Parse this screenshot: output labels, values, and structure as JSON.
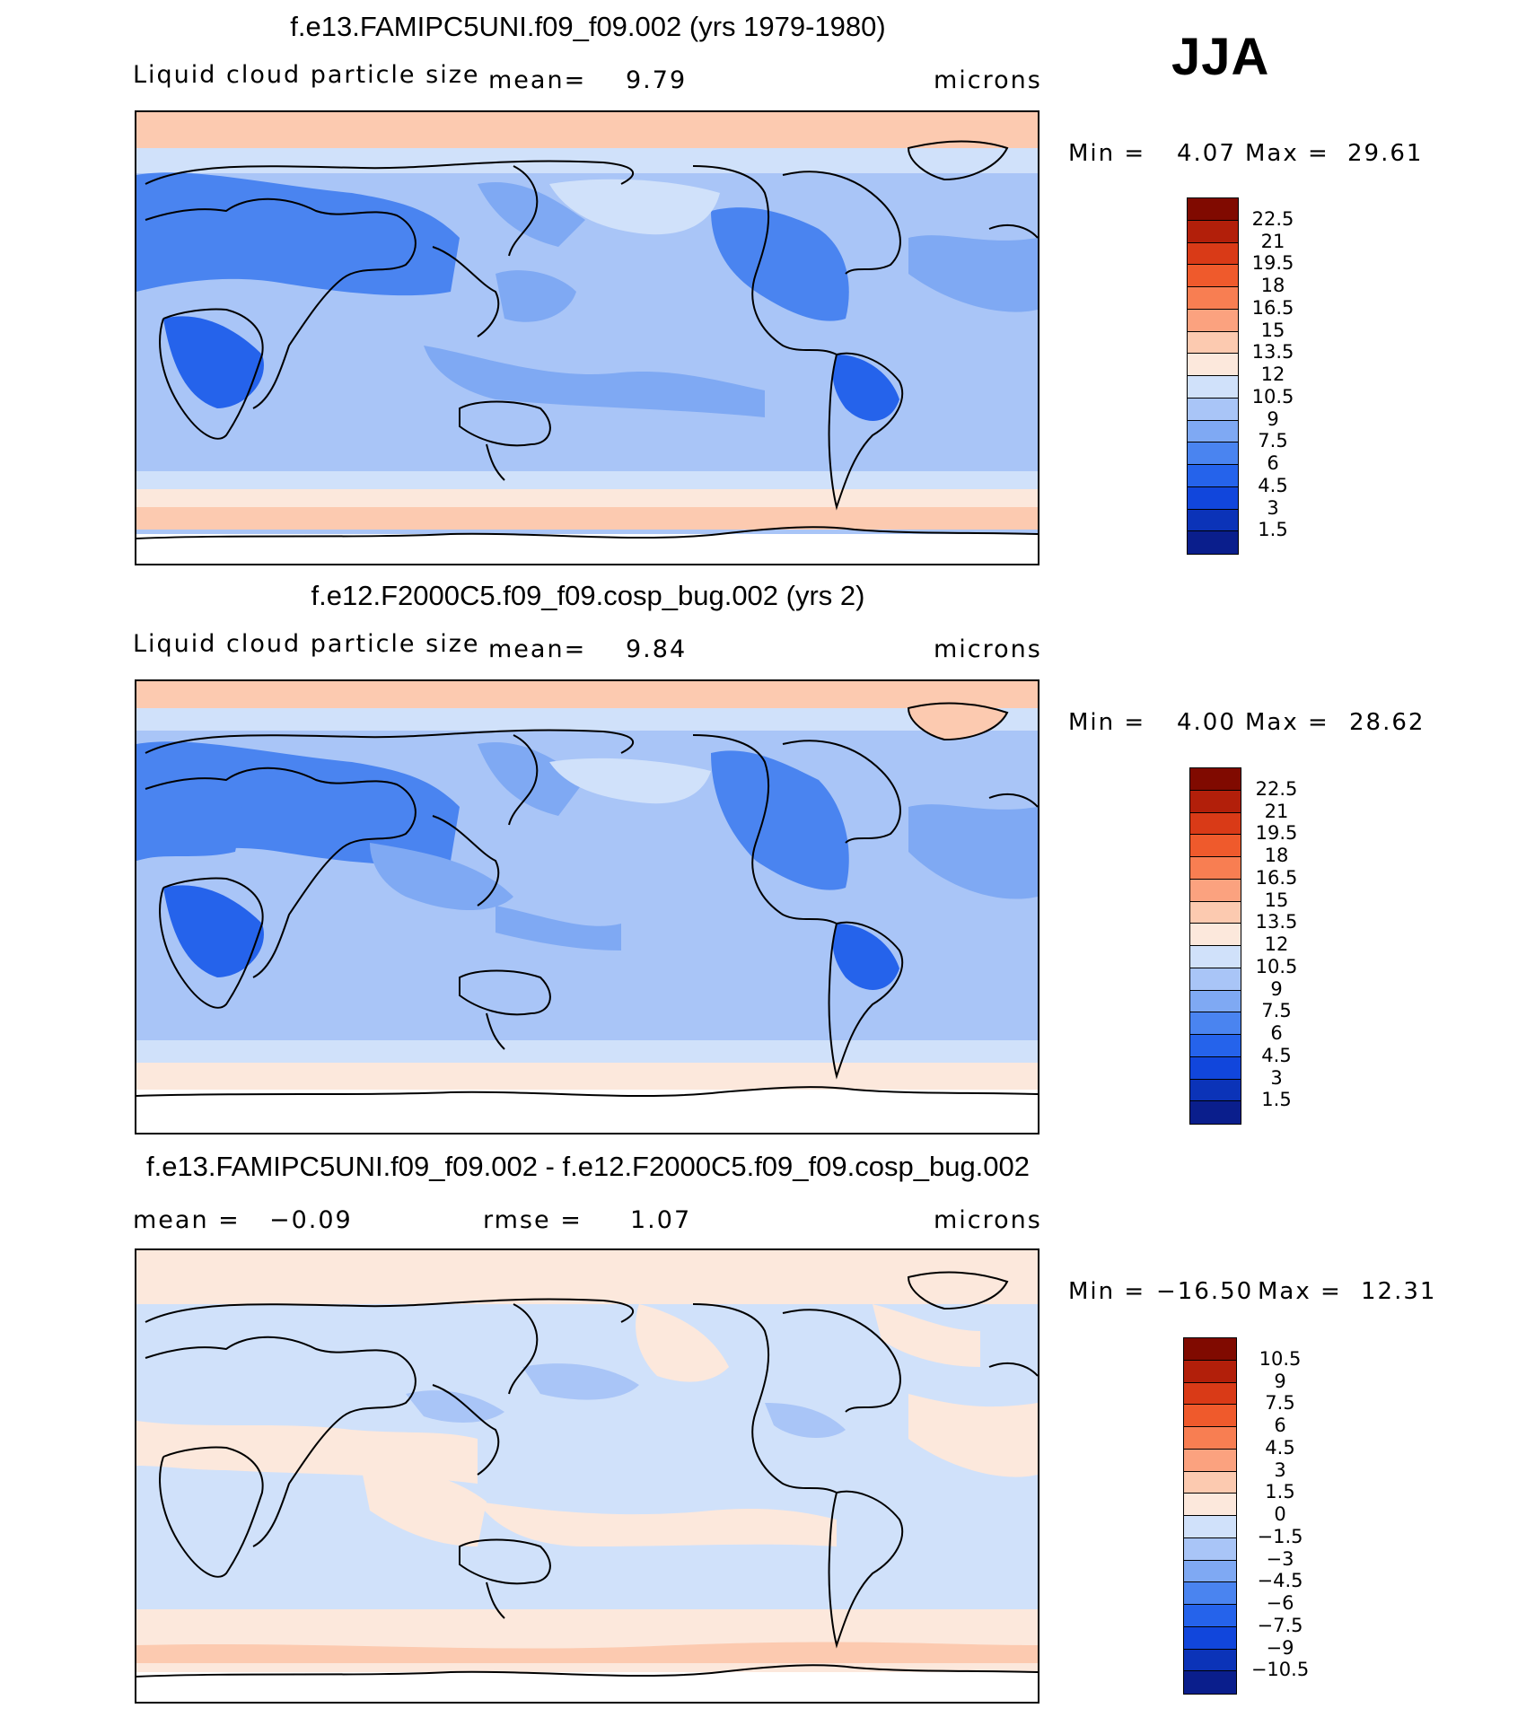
{
  "season_label": "JJA",
  "colors": {
    "scale": [
      "#0a1e8c",
      "#0b33b8",
      "#1146dc",
      "#2563eb",
      "#4a84f0",
      "#7fa9f3",
      "#a9c5f7",
      "#d0e1fa",
      "#fce8dc",
      "#fccab0",
      "#fba27f",
      "#f87e52",
      "#ef5a2c",
      "#d93a17",
      "#b21f0a",
      "#800a00"
    ]
  },
  "panels": [
    {
      "title": "f.e13.FAMIPC5UNI.f09_f09.002 (yrs 1979-1980)",
      "variable": "Liquid cloud particle size",
      "mean_label": "mean=",
      "mean_value": "9.79",
      "units": "microns",
      "min_label": "Min =",
      "min_value": "4.07",
      "max_label": "Max =",
      "max_value": "29.61",
      "colorbar_labels": [
        "22.5",
        "21",
        "19.5",
        "18",
        "16.5",
        "15",
        "13.5",
        "12",
        "10.5",
        "9",
        "7.5",
        "6",
        "4.5",
        "3",
        "1.5"
      ]
    },
    {
      "title": "f.e12.F2000C5.f09_f09.cosp_bug.002 (yrs 2)",
      "variable": "Liquid cloud particle size",
      "mean_label": "mean=",
      "mean_value": "9.84",
      "units": "microns",
      "min_label": "Min =",
      "min_value": "4.00",
      "max_label": "Max =",
      "max_value": "28.62",
      "colorbar_labels": [
        "22.5",
        "21",
        "19.5",
        "18",
        "16.5",
        "15",
        "13.5",
        "12",
        "10.5",
        "9",
        "7.5",
        "6",
        "4.5",
        "3",
        "1.5"
      ]
    },
    {
      "title": "f.e13.FAMIPC5UNI.f09_f09.002 - f.e12.F2000C5.f09_f09.cosp_bug.002",
      "mean_label": "mean =",
      "mean_value": "−0.09",
      "rmse_label": "rmse =",
      "rmse_value": "1.07",
      "units": "microns",
      "min_label": "Min =",
      "min_value": "−16.50",
      "max_label": "Max =",
      "max_value": "12.31",
      "colorbar_labels": [
        "10.5",
        "9",
        "7.5",
        "6",
        "4.5",
        "3",
        "1.5",
        "0",
        "−1.5",
        "−3",
        "−4.5",
        "−6",
        "−7.5",
        "−9",
        "−10.5"
      ]
    }
  ]
}
